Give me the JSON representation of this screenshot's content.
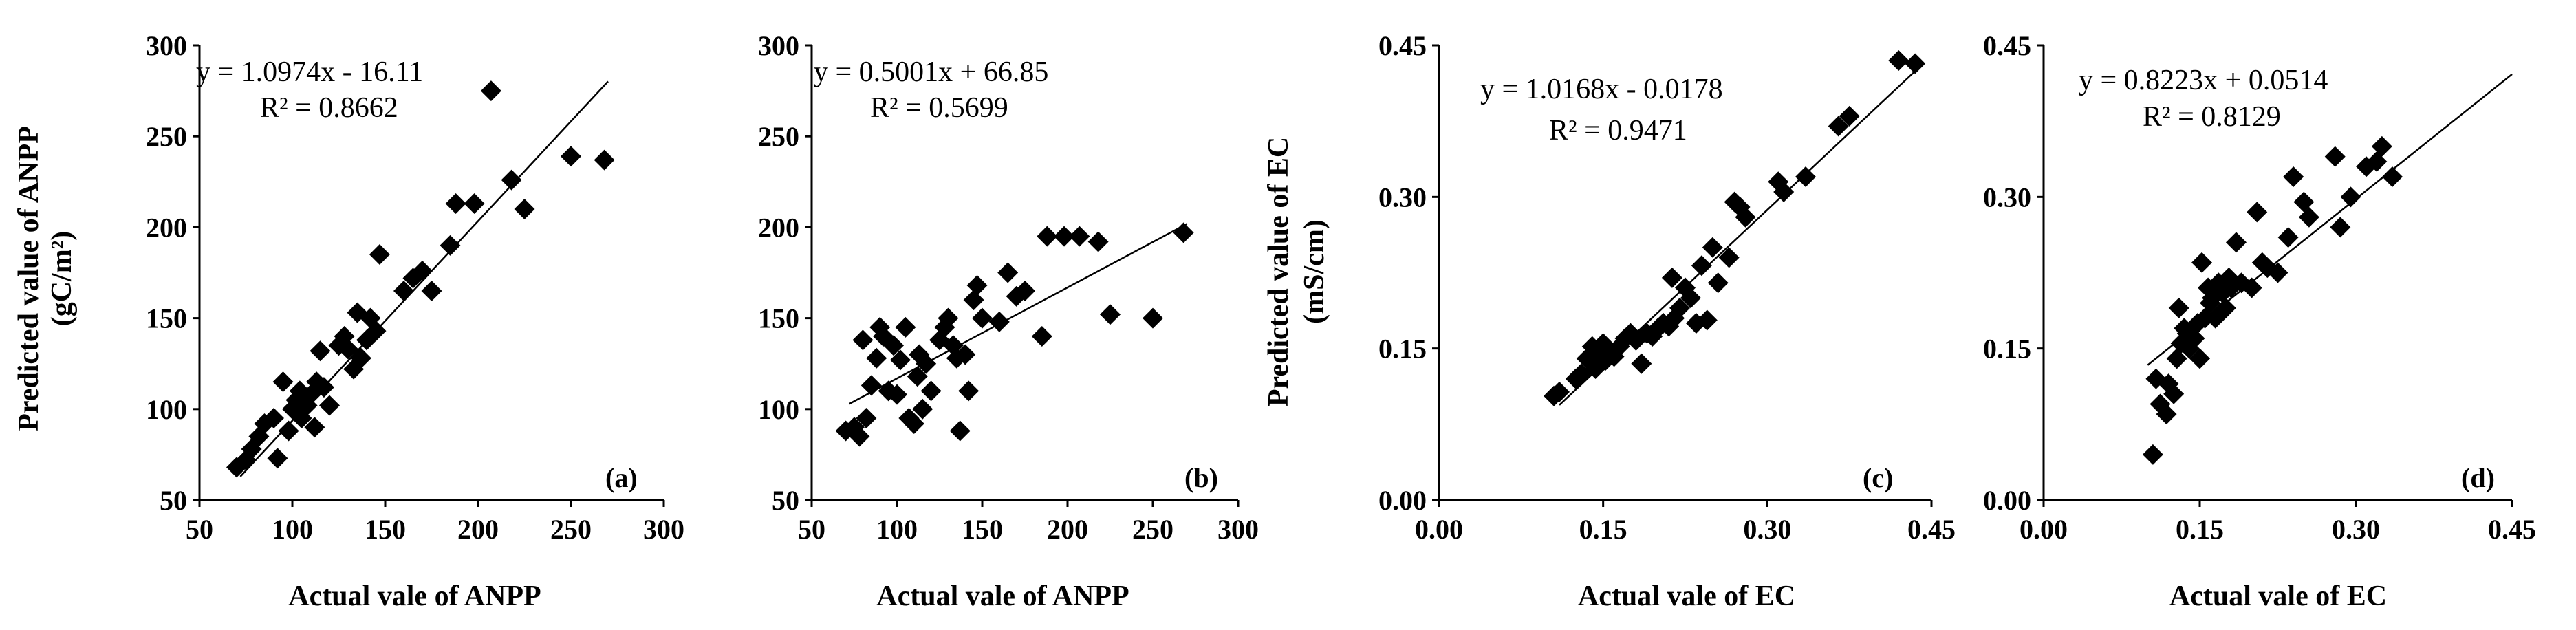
{
  "figure": {
    "y_label_left": "Predicted value of ANPP",
    "y_unit_left": "(gC/m²)",
    "y_label_right": "Predicted value of EC",
    "y_unit_right": "(mS/cm)"
  },
  "chart_data": [
    {
      "type": "scatter",
      "panel_label": "(a)",
      "xlabel": "Actual vale of ANPP",
      "ylabel": "Predicted value of ANPP (gC/m²)",
      "xlim": [
        50,
        300
      ],
      "ylim": [
        50,
        300
      ],
      "x_ticks": [
        "50",
        "100",
        "150",
        "200",
        "250",
        "300"
      ],
      "y_ticks": [
        "50",
        "100",
        "150",
        "200",
        "250",
        "300"
      ],
      "equation": "y = 1.0974x - 16.11",
      "r2": "R² = 0.8662",
      "trendline": {
        "slope": 1.0974,
        "intercept": -16.11,
        "x_range": [
          72,
          270
        ]
      },
      "points": [
        [
          70,
          68
        ],
        [
          75,
          72
        ],
        [
          78,
          78
        ],
        [
          82,
          85
        ],
        [
          85,
          92
        ],
        [
          90,
          95
        ],
        [
          92,
          73
        ],
        [
          95,
          115
        ],
        [
          98,
          88
        ],
        [
          100,
          100
        ],
        [
          102,
          105
        ],
        [
          104,
          110
        ],
        [
          105,
          95
        ],
        [
          108,
          102
        ],
        [
          110,
          108
        ],
        [
          112,
          90
        ],
        [
          113,
          115
        ],
        [
          115,
          132
        ],
        [
          117,
          112
        ],
        [
          120,
          102
        ],
        [
          125,
          135
        ],
        [
          128,
          140
        ],
        [
          130,
          133
        ],
        [
          133,
          122
        ],
        [
          135,
          153
        ],
        [
          137,
          128
        ],
        [
          140,
          138
        ],
        [
          142,
          150
        ],
        [
          145,
          143
        ],
        [
          147,
          185
        ],
        [
          160,
          165
        ],
        [
          165,
          172
        ],
        [
          170,
          176
        ],
        [
          175,
          165
        ],
        [
          185,
          190
        ],
        [
          188,
          213
        ],
        [
          198,
          213
        ],
        [
          207,
          275
        ],
        [
          218,
          226
        ],
        [
          225,
          210
        ],
        [
          250,
          239
        ],
        [
          268,
          237
        ]
      ]
    },
    {
      "type": "scatter",
      "panel_label": "(b)",
      "xlabel": "Actual vale of ANPP",
      "ylabel": "",
      "xlim": [
        50,
        300
      ],
      "ylim": [
        50,
        300
      ],
      "x_ticks": [
        "50",
        "100",
        "150",
        "200",
        "250",
        "300"
      ],
      "y_ticks": [
        "50",
        "100",
        "150",
        "200",
        "250",
        "300"
      ],
      "equation": "y = 0.5001x + 66.85",
      "r2": "R² = 0.5699",
      "trendline": {
        "slope": 0.5001,
        "intercept": 66.85,
        "x_range": [
          72,
          270
        ]
      },
      "points": [
        [
          70,
          88
        ],
        [
          75,
          90
        ],
        [
          78,
          85
        ],
        [
          80,
          138
        ],
        [
          82,
          95
        ],
        [
          85,
          113
        ],
        [
          88,
          128
        ],
        [
          90,
          145
        ],
        [
          92,
          140
        ],
        [
          95,
          110
        ],
        [
          98,
          135
        ],
        [
          100,
          108
        ],
        [
          102,
          127
        ],
        [
          105,
          145
        ],
        [
          107,
          95
        ],
        [
          110,
          92
        ],
        [
          112,
          118
        ],
        [
          113,
          130
        ],
        [
          115,
          100
        ],
        [
          117,
          125
        ],
        [
          120,
          110
        ],
        [
          125,
          138
        ],
        [
          128,
          145
        ],
        [
          130,
          150
        ],
        [
          133,
          135
        ],
        [
          135,
          128
        ],
        [
          137,
          88
        ],
        [
          140,
          130
        ],
        [
          142,
          110
        ],
        [
          145,
          160
        ],
        [
          147,
          168
        ],
        [
          150,
          150
        ],
        [
          160,
          148
        ],
        [
          165,
          175
        ],
        [
          170,
          162
        ],
        [
          175,
          165
        ],
        [
          185,
          140
        ],
        [
          188,
          195
        ],
        [
          198,
          195
        ],
        [
          207,
          195
        ],
        [
          218,
          192
        ],
        [
          225,
          152
        ],
        [
          250,
          150
        ],
        [
          268,
          197
        ]
      ]
    },
    {
      "type": "scatter",
      "panel_label": "(c)",
      "xlabel": "Actual vale of EC",
      "ylabel": "Predicted value of EC (mS/cm)",
      "xlim": [
        0.0,
        0.45
      ],
      "ylim": [
        0.0,
        0.45
      ],
      "x_ticks": [
        "0.00",
        "0.15",
        "0.30",
        "0.45"
      ],
      "y_ticks": [
        "0.00",
        "0.15",
        "0.30",
        "0.45"
      ],
      "equation": "y = 1.0168x - 0.0178",
      "r2": "R² = 0.9471",
      "trendline": {
        "slope": 1.0168,
        "intercept": -0.0178,
        "x_range": [
          0.11,
          0.44
        ]
      },
      "points": [
        [
          0.105,
          0.103
        ],
        [
          0.11,
          0.107
        ],
        [
          0.125,
          0.12
        ],
        [
          0.13,
          0.125
        ],
        [
          0.135,
          0.14
        ],
        [
          0.14,
          0.152
        ],
        [
          0.143,
          0.13
        ],
        [
          0.147,
          0.145
        ],
        [
          0.15,
          0.155
        ],
        [
          0.152,
          0.138
        ],
        [
          0.155,
          0.148
        ],
        [
          0.16,
          0.142
        ],
        [
          0.165,
          0.152
        ],
        [
          0.17,
          0.16
        ],
        [
          0.175,
          0.165
        ],
        [
          0.18,
          0.158
        ],
        [
          0.185,
          0.135
        ],
        [
          0.19,
          0.165
        ],
        [
          0.195,
          0.162
        ],
        [
          0.2,
          0.17
        ],
        [
          0.205,
          0.175
        ],
        [
          0.21,
          0.172
        ],
        [
          0.213,
          0.22
        ],
        [
          0.215,
          0.18
        ],
        [
          0.22,
          0.19
        ],
        [
          0.225,
          0.21
        ],
        [
          0.23,
          0.2
        ],
        [
          0.235,
          0.175
        ],
        [
          0.24,
          0.232
        ],
        [
          0.245,
          0.178
        ],
        [
          0.25,
          0.25
        ],
        [
          0.255,
          0.215
        ],
        [
          0.265,
          0.24
        ],
        [
          0.27,
          0.295
        ],
        [
          0.275,
          0.29
        ],
        [
          0.28,
          0.28
        ],
        [
          0.31,
          0.315
        ],
        [
          0.315,
          0.305
        ],
        [
          0.335,
          0.32
        ],
        [
          0.365,
          0.37
        ],
        [
          0.375,
          0.38
        ],
        [
          0.42,
          0.435
        ],
        [
          0.435,
          0.432
        ]
      ]
    },
    {
      "type": "scatter",
      "panel_label": "(d)",
      "xlabel": "Actual vale of EC",
      "ylabel": "",
      "xlim": [
        0.0,
        0.45
      ],
      "ylim": [
        0.0,
        0.45
      ],
      "x_ticks": [
        "0.00",
        "0.15",
        "0.30",
        "0.45"
      ],
      "y_ticks": [
        "0.00",
        "0.15",
        "0.30",
        "0.45"
      ],
      "equation": "y = 0.8223x + 0.0514",
      "r2": "R² = 0.8129",
      "trendline": {
        "slope": 0.8223,
        "intercept": 0.0514,
        "x_range": [
          0.1,
          0.45
        ]
      },
      "points": [
        [
          0.105,
          0.045
        ],
        [
          0.108,
          0.12
        ],
        [
          0.112,
          0.095
        ],
        [
          0.118,
          0.085
        ],
        [
          0.12,
          0.115
        ],
        [
          0.125,
          0.105
        ],
        [
          0.128,
          0.14
        ],
        [
          0.13,
          0.19
        ],
        [
          0.132,
          0.155
        ],
        [
          0.135,
          0.17
        ],
        [
          0.138,
          0.165
        ],
        [
          0.14,
          0.15
        ],
        [
          0.145,
          0.16
        ],
        [
          0.148,
          0.175
        ],
        [
          0.15,
          0.14
        ],
        [
          0.152,
          0.235
        ],
        [
          0.155,
          0.18
        ],
        [
          0.158,
          0.21
        ],
        [
          0.16,
          0.195
        ],
        [
          0.162,
          0.2
        ],
        [
          0.165,
          0.18
        ],
        [
          0.168,
          0.215
        ],
        [
          0.17,
          0.185
        ],
        [
          0.172,
          0.205
        ],
        [
          0.175,
          0.19
        ],
        [
          0.178,
          0.22
        ],
        [
          0.18,
          0.21
        ],
        [
          0.185,
          0.255
        ],
        [
          0.19,
          0.215
        ],
        [
          0.2,
          0.21
        ],
        [
          0.205,
          0.285
        ],
        [
          0.21,
          0.235
        ],
        [
          0.215,
          0.23
        ],
        [
          0.225,
          0.225
        ],
        [
          0.235,
          0.26
        ],
        [
          0.24,
          0.32
        ],
        [
          0.25,
          0.295
        ],
        [
          0.255,
          0.28
        ],
        [
          0.28,
          0.34
        ],
        [
          0.285,
          0.27
        ],
        [
          0.295,
          0.3
        ],
        [
          0.31,
          0.33
        ],
        [
          0.32,
          0.335
        ],
        [
          0.325,
          0.35
        ],
        [
          0.335,
          0.32
        ]
      ]
    }
  ]
}
